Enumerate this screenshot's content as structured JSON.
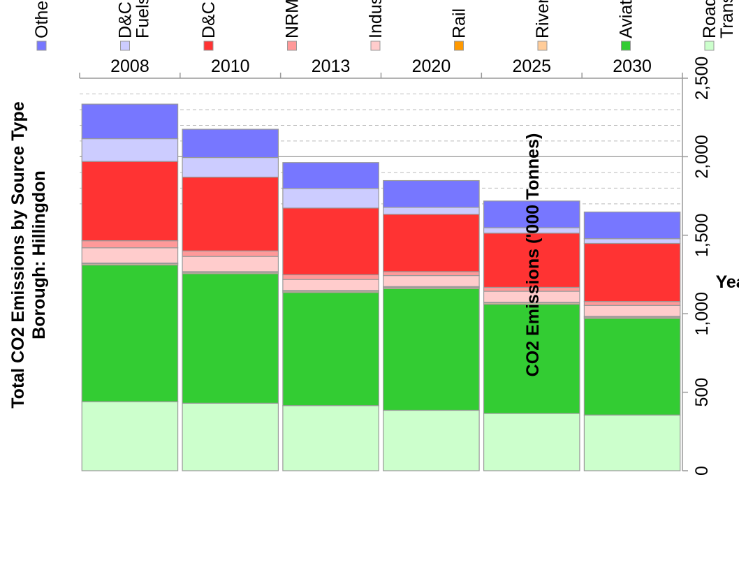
{
  "chart_data": {
    "type": "bar",
    "orientation": "horizontal-stacked",
    "title": "Total CO2 Emissions by Source Type",
    "subtitle": "Borough: Hillingdon",
    "xlabel": "Year",
    "ylabel": "CO2 Emissions ('000 Tonnes)",
    "ylim": [
      0,
      2500
    ],
    "yticks": [
      "0",
      "500",
      "1,000",
      "1,500",
      "2,000",
      "2,500"
    ],
    "ytick_values": [
      0,
      500,
      1000,
      1500,
      2000,
      2500
    ],
    "grid": true,
    "legend_placement": "right",
    "categories": [
      "2008",
      "2010",
      "2013",
      "2020",
      "2025",
      "2030"
    ],
    "series": [
      {
        "name": "Road Transport",
        "color": "#ccffcc",
        "values": [
          440,
          430,
          415,
          385,
          365,
          355
        ]
      },
      {
        "name": "Aviation",
        "color": "#33cc33",
        "values": [
          870,
          825,
          720,
          775,
          695,
          615
        ]
      },
      {
        "name": "River",
        "color": "#ffcc99",
        "values": [
          8,
          8,
          8,
          8,
          8,
          8
        ]
      },
      {
        "name": "Rail",
        "color": "#ff9900",
        "values": [
          5,
          5,
          5,
          5,
          5,
          5
        ]
      },
      {
        "name": "Industry",
        "color": "#ffcccc",
        "values": [
          97,
          97,
          70,
          70,
          70,
          70
        ]
      },
      {
        "name": "NRMM",
        "color": "#ff9999",
        "values": [
          45,
          35,
          30,
          25,
          25,
          25
        ]
      },
      {
        "name": "D&C Gas",
        "color": "#ff3333",
        "values": [
          505,
          470,
          425,
          365,
          345,
          370
        ]
      },
      {
        "name": "D&C Other Fuels",
        "color": "#ccccff",
        "values": [
          145,
          125,
          125,
          45,
          35,
          30
        ]
      },
      {
        "name": "Other",
        "color": "#7777ff",
        "values": [
          220,
          180,
          165,
          170,
          170,
          170
        ]
      }
    ],
    "legend": [
      {
        "label": "Other",
        "color": "#7777ff"
      },
      {
        "label": "D&C Othe",
        "label2": "Fuels",
        "color": "#ccccff"
      },
      {
        "label": "D&C Gas",
        "color": "#ff3333"
      },
      {
        "label": "NRMM",
        "color": "#ff9999"
      },
      {
        "label": "Industry",
        "color": "#ffcccc"
      },
      {
        "label": "Rail",
        "color": "#ff9900"
      },
      {
        "label": "River",
        "color": "#ffcc99"
      },
      {
        "label": "Aviation",
        "color": "#33cc33"
      },
      {
        "label": "Road",
        "label2": "Transport",
        "color": "#ccffcc"
      }
    ]
  }
}
